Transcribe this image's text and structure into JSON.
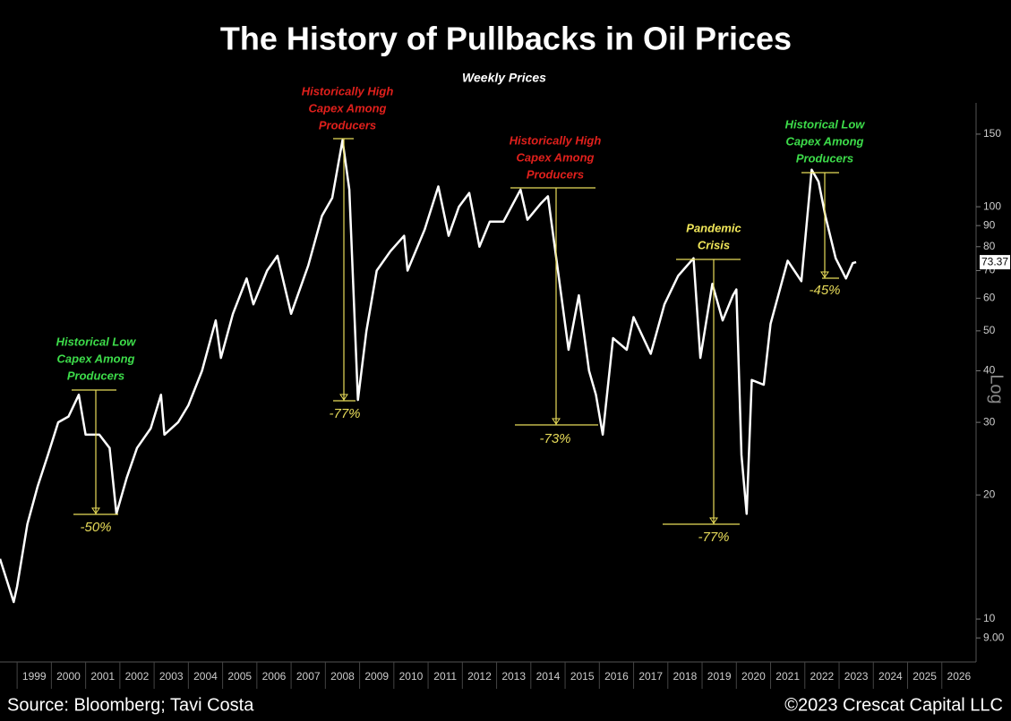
{
  "chart_data": {
    "type": "line",
    "title": "The History of Pullbacks in Oil Prices",
    "subtitle": "Weekly Prices",
    "source": "Source: Bloomberg; Tavi Costa",
    "copyright": "©2023 Crescat Capital LLC",
    "log_scale": true,
    "scale_label": "Log",
    "x": [
      1998.5,
      1998.9,
      1999.0,
      1999.3,
      1999.6,
      1999.9,
      2000.2,
      2000.5,
      2000.8,
      2001.0,
      2001.4,
      2001.7,
      2001.9,
      2002.2,
      2002.5,
      2002.9,
      2003.2,
      2003.3,
      2003.7,
      2004.0,
      2004.4,
      2004.8,
      2004.95,
      2005.3,
      2005.7,
      2005.9,
      2006.3,
      2006.6,
      2007.0,
      2007.5,
      2007.9,
      2008.2,
      2008.5,
      2008.7,
      2008.95,
      2009.2,
      2009.5,
      2009.9,
      2010.3,
      2010.4,
      2010.9,
      2011.3,
      2011.6,
      2011.9,
      2012.2,
      2012.5,
      2012.8,
      2013.2,
      2013.7,
      2013.9,
      2014.3,
      2014.5,
      2014.9,
      2015.1,
      2015.4,
      2015.7,
      2015.9,
      2016.1,
      2016.4,
      2016.8,
      2017.0,
      2017.5,
      2017.9,
      2018.3,
      2018.75,
      2018.95,
      2019.3,
      2019.6,
      2019.9,
      2020.0,
      2020.15,
      2020.3,
      2020.45,
      2020.8,
      2021.0,
      2021.5,
      2021.9,
      2022.2,
      2022.4,
      2022.6,
      2022.9,
      2023.2,
      2023.4,
      2023.5
    ],
    "series": [
      {
        "name": "Oil price",
        "color": "#ffffff",
        "values": [
          14,
          11,
          12,
          17,
          21,
          25,
          30,
          31,
          35,
          28,
          28,
          26,
          18,
          22,
          26,
          29,
          35,
          28,
          30,
          33,
          40,
          53,
          43,
          55,
          67,
          58,
          70,
          76,
          55,
          72,
          95,
          105,
          145,
          110,
          34,
          50,
          70,
          78,
          85,
          70,
          88,
          112,
          85,
          100,
          108,
          80,
          92,
          92,
          110,
          93,
          102,
          106,
          60,
          45,
          61,
          40,
          35,
          28,
          48,
          45,
          54,
          44,
          58,
          68,
          75,
          43,
          65,
          53,
          61,
          63,
          25,
          18,
          38,
          37,
          52,
          74,
          66,
          123,
          115,
          95,
          75,
          67,
          73,
          73.37
        ]
      }
    ],
    "last_value": 73.37,
    "xlim": [
      1998.5,
      2027
    ],
    "ylim": [
      7.87,
      178.6
    ],
    "xticks": [
      1999,
      2000,
      2001,
      2002,
      2003,
      2004,
      2005,
      2006,
      2007,
      2008,
      2009,
      2010,
      2011,
      2012,
      2013,
      2014,
      2015,
      2016,
      2017,
      2018,
      2019,
      2020,
      2021,
      2022,
      2023,
      2024,
      2025,
      2026
    ],
    "yticks": [
      {
        "value": 9,
        "label": "9.00"
      },
      10,
      20,
      30,
      40,
      50,
      60,
      70,
      80,
      90,
      100,
      150
    ],
    "annotations": [
      {
        "lines": [
          "Historical Low",
          "Capex Among",
          "Producers"
        ],
        "color": "#3ddc4a",
        "drawdown": "-50%"
      },
      {
        "lines": [
          "Historically High",
          "Capex Among",
          "Producers"
        ],
        "color": "#e0201c",
        "drawdown": "-77%"
      },
      {
        "lines": [
          "Historically High",
          "Capex Among",
          "Producers"
        ],
        "color": "#e0201c",
        "drawdown": "-73%"
      },
      {
        "lines": [
          "Pandemic",
          "Crisis"
        ],
        "color": "#f2e85a",
        "drawdown": "-77%"
      },
      {
        "lines": [
          "Historical Low",
          "Capex Among",
          "Producers"
        ],
        "color": "#3ddc4a",
        "drawdown": "-45%"
      }
    ]
  }
}
